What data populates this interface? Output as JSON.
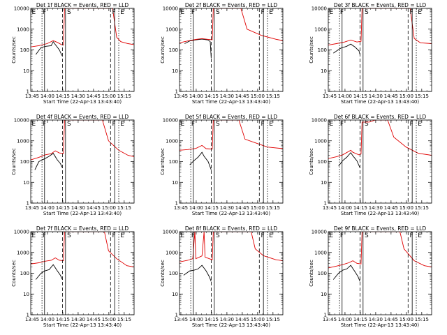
{
  "colors": {
    "events": "#000000",
    "lld": "#e00000",
    "axes": "#000000",
    "background": "#ffffff"
  },
  "common": {
    "ylabel": "Counts/sec",
    "xlabel": "Start Time (22-Apr-13 13:43:40)",
    "y_ticks": [
      "1",
      "10",
      "100",
      "1000",
      "10000"
    ],
    "x_ticks": [
      "13:45",
      "14:00",
      "14:15",
      "14:30",
      "14:45",
      "15:00",
      "15:15"
    ],
    "markers": [
      "E",
      "F",
      "S",
      "F",
      "E"
    ]
  },
  "chart_data": [
    {
      "type": "line",
      "title": "Det 1f BLACK = Events, RED = LLD",
      "ylim": [
        1,
        10000
      ],
      "xlim_minutes": [
        0,
        101
      ],
      "y_scale": "log",
      "series": [
        {
          "color": "black",
          "points": [
            [
              5,
              60
            ],
            [
              10,
              130
            ],
            [
              15,
              150
            ],
            [
              20,
              160
            ],
            [
              22,
              250
            ],
            [
              24,
              180
            ],
            [
              28,
              100
            ],
            [
              30,
              60
            ],
            [
              31,
              50
            ]
          ]
        },
        {
          "color": "red",
          "points": [
            [
              0,
              140
            ],
            [
              8,
              160
            ],
            [
              16,
              200
            ],
            [
              22,
              280
            ],
            [
              26,
              230
            ],
            [
              30,
              180
            ],
            [
              32,
              170
            ],
            [
              33,
              10000
            ],
            [
              80,
              10000
            ],
            [
              84,
              400
            ],
            [
              88,
              250
            ],
            [
              95,
              200
            ],
            [
              101,
              180
            ]
          ]
        }
      ]
    },
    {
      "type": "line",
      "title": "Det 2f BLACK = Events, RED = LLD",
      "ylim": [
        1,
        10000
      ],
      "xlim_minutes": [
        0,
        101
      ],
      "y_scale": "log",
      "series": [
        {
          "color": "black",
          "points": [
            [
              5,
              200
            ],
            [
              10,
              270
            ],
            [
              15,
              300
            ],
            [
              22,
              330
            ],
            [
              28,
              300
            ],
            [
              30,
              250
            ],
            [
              31,
              40
            ]
          ]
        },
        {
          "color": "red",
          "points": [
            [
              0,
              220
            ],
            [
              8,
              270
            ],
            [
              16,
              320
            ],
            [
              22,
              350
            ],
            [
              28,
              320
            ],
            [
              32,
              310
            ],
            [
              33,
              10000
            ],
            [
              60,
              10000
            ],
            [
              66,
              1000
            ],
            [
              80,
              500
            ],
            [
              95,
              320
            ],
            [
              101,
              280
            ]
          ]
        }
      ]
    },
    {
      "type": "line",
      "title": "Det 3f BLACK = Events, RED = LLD",
      "ylim": [
        1,
        10000
      ],
      "xlim_minutes": [
        0,
        101
      ],
      "y_scale": "log",
      "series": [
        {
          "color": "black",
          "points": [
            [
              5,
              70
            ],
            [
              12,
              120
            ],
            [
              18,
              150
            ],
            [
              22,
              190
            ],
            [
              26,
              140
            ],
            [
              30,
              90
            ],
            [
              31,
              60
            ]
          ]
        },
        {
          "color": "red",
          "points": [
            [
              0,
              170
            ],
            [
              8,
              200
            ],
            [
              16,
              240
            ],
            [
              22,
              300
            ],
            [
              28,
              240
            ],
            [
              32,
              260
            ],
            [
              33,
              10000
            ],
            [
              80,
              10000
            ],
            [
              84,
              350
            ],
            [
              90,
              220
            ],
            [
              101,
              200
            ]
          ]
        }
      ]
    },
    {
      "type": "line",
      "title": "Det 4f BLACK = Events, RED = LLD",
      "ylim": [
        1,
        10000
      ],
      "xlim_minutes": [
        0,
        101
      ],
      "y_scale": "log",
      "series": [
        {
          "color": "black",
          "points": [
            [
              4,
              40
            ],
            [
              8,
              100
            ],
            [
              14,
              140
            ],
            [
              18,
              180
            ],
            [
              22,
              250
            ],
            [
              26,
              120
            ],
            [
              29,
              80
            ],
            [
              31,
              50
            ]
          ]
        },
        {
          "color": "red",
          "points": [
            [
              0,
              120
            ],
            [
              8,
              160
            ],
            [
              14,
              210
            ],
            [
              20,
              240
            ],
            [
              24,
              330
            ],
            [
              28,
              260
            ],
            [
              32,
              250
            ],
            [
              33,
              10000
            ],
            [
              70,
              10000
            ],
            [
              76,
              1000
            ],
            [
              86,
              350
            ],
            [
              95,
              200
            ],
            [
              101,
              170
            ]
          ]
        }
      ]
    },
    {
      "type": "line",
      "title": "Det 5f BLACK = Events, RED = LLD",
      "ylim": [
        1,
        10000
      ],
      "xlim_minutes": [
        0,
        101
      ],
      "y_scale": "log",
      "series": [
        {
          "color": "black",
          "points": [
            [
              10,
              70
            ],
            [
              14,
              110
            ],
            [
              18,
              160
            ],
            [
              22,
              280
            ],
            [
              24,
              180
            ],
            [
              28,
              100
            ],
            [
              31,
              40
            ]
          ]
        },
        {
          "color": "red",
          "points": [
            [
              0,
              350
            ],
            [
              8,
              380
            ],
            [
              16,
              430
            ],
            [
              22,
              600
            ],
            [
              26,
              420
            ],
            [
              32,
              400
            ],
            [
              33,
              10000
            ],
            [
              58,
              10000
            ],
            [
              64,
              1200
            ],
            [
              74,
              800
            ],
            [
              86,
              500
            ],
            [
              101,
              420
            ]
          ]
        }
      ]
    },
    {
      "type": "line",
      "title": "Det 6f BLACK = Events, RED = LLD",
      "ylim": [
        1,
        10000
      ],
      "xlim_minutes": [
        0,
        101
      ],
      "y_scale": "log",
      "series": [
        {
          "color": "black",
          "points": [
            [
              10,
              60
            ],
            [
              14,
              110
            ],
            [
              18,
              160
            ],
            [
              22,
              270
            ],
            [
              24,
              190
            ],
            [
              28,
              110
            ],
            [
              31,
              50
            ]
          ]
        },
        {
          "color": "red",
          "points": [
            [
              0,
              140
            ],
            [
              8,
              170
            ],
            [
              14,
              210
            ],
            [
              22,
              350
            ],
            [
              24,
              280
            ],
            [
              30,
              210
            ],
            [
              32,
              230
            ],
            [
              33,
              8000
            ],
            [
              40,
              8000
            ],
            [
              46,
              10000
            ],
            [
              58,
              10000
            ],
            [
              64,
              1500
            ],
            [
              76,
              500
            ],
            [
              88,
              250
            ],
            [
              101,
              200
            ]
          ]
        }
      ]
    },
    {
      "type": "line",
      "title": "Det 7f BLACK = Events, RED = LLD",
      "ylim": [
        1,
        10000
      ],
      "xlim_minutes": [
        0,
        101
      ],
      "y_scale": "log",
      "series": [
        {
          "color": "black",
          "points": [
            [
              5,
              50
            ],
            [
              10,
              100
            ],
            [
              14,
              130
            ],
            [
              18,
              150
            ],
            [
              22,
              260
            ],
            [
              26,
              130
            ],
            [
              29,
              80
            ],
            [
              31,
              50
            ]
          ]
        },
        {
          "color": "red",
          "points": [
            [
              0,
              280
            ],
            [
              8,
              320
            ],
            [
              14,
              380
            ],
            [
              20,
              420
            ],
            [
              24,
              550
            ],
            [
              28,
              420
            ],
            [
              32,
              400
            ],
            [
              33,
              10000
            ],
            [
              72,
              10000
            ],
            [
              76,
              1200
            ],
            [
              84,
              500
            ],
            [
              94,
              230
            ],
            [
              101,
              200
            ]
          ]
        }
      ]
    },
    {
      "type": "line",
      "title": "Det 8f BLACK = Events, RED = LLD",
      "ylim": [
        1,
        10000
      ],
      "xlim_minutes": [
        0,
        101
      ],
      "y_scale": "log",
      "series": [
        {
          "color": "black",
          "points": [
            [
              4,
              80
            ],
            [
              10,
              130
            ],
            [
              14,
              140
            ],
            [
              18,
              160
            ],
            [
              22,
              240
            ],
            [
              26,
              130
            ],
            [
              29,
              70
            ],
            [
              31,
              40
            ]
          ]
        },
        {
          "color": "red",
          "points": [
            [
              0,
              350
            ],
            [
              8,
              420
            ],
            [
              13,
              500
            ],
            [
              15,
              10000
            ],
            [
              16,
              500
            ],
            [
              22,
              680
            ],
            [
              24,
              10000
            ],
            [
              25,
              600
            ],
            [
              30,
              480
            ],
            [
              32,
              450
            ],
            [
              33,
              10000
            ],
            [
              70,
              10000
            ],
            [
              74,
              1500
            ],
            [
              82,
              700
            ],
            [
              94,
              450
            ],
            [
              101,
              400
            ]
          ]
        }
      ]
    },
    {
      "type": "line",
      "title": "Det 9f BLACK = Events, RED = LLD",
      "ylim": [
        1,
        10000
      ],
      "xlim_minutes": [
        0,
        101
      ],
      "y_scale": "log",
      "series": [
        {
          "color": "black",
          "points": [
            [
              5,
              50
            ],
            [
              10,
              100
            ],
            [
              14,
              140
            ],
            [
              18,
              160
            ],
            [
              22,
              240
            ],
            [
              26,
              120
            ],
            [
              29,
              70
            ],
            [
              31,
              40
            ]
          ]
        },
        {
          "color": "red",
          "points": [
            [
              0,
              180
            ],
            [
              8,
              220
            ],
            [
              14,
              260
            ],
            [
              20,
              320
            ],
            [
              24,
              400
            ],
            [
              28,
              300
            ],
            [
              32,
              280
            ],
            [
              33,
              10000
            ],
            [
              70,
              10000
            ],
            [
              74,
              1500
            ],
            [
              84,
              400
            ],
            [
              94,
              230
            ],
            [
              101,
              200
            ]
          ]
        }
      ]
    }
  ]
}
